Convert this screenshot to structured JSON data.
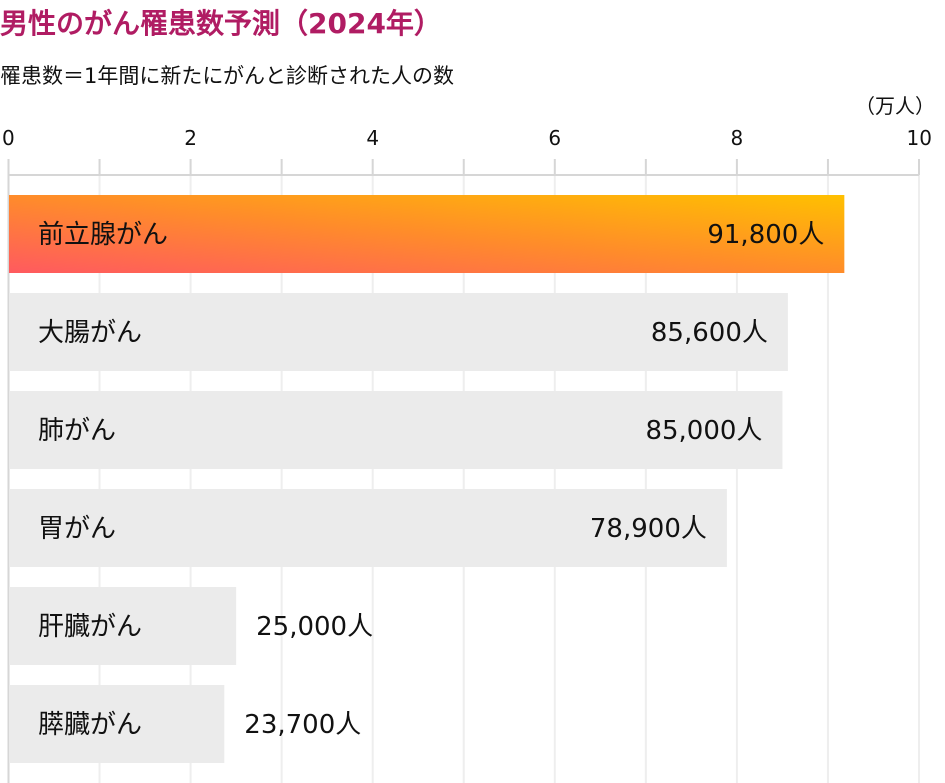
{
  "chart_data": {
    "type": "bar",
    "orientation": "horizontal",
    "title": "男性のがん罹患数予測（2024年）",
    "subtitle": "罹患数＝1年間に新たにがんと診断された人の数",
    "unit_label": "（万人）",
    "xlim": [
      0,
      10
    ],
    "x_tick_labels": [
      "0",
      "2",
      "4",
      "6",
      "8",
      "10"
    ],
    "x_ticks": [
      0,
      2,
      4,
      6,
      8,
      10
    ],
    "minor_ticks": [
      1,
      3,
      5,
      7,
      9
    ],
    "grid": true,
    "categories": [
      "前立腺がん",
      "大腸がん",
      "肺がん",
      "胃がん",
      "肝臓がん",
      "膵臓がん"
    ],
    "values": [
      9.18,
      8.56,
      8.5,
      7.89,
      2.5,
      2.37
    ],
    "data_labels": [
      "91,800人",
      "85,600人",
      "85,000人",
      "78,900人",
      "25,000人",
      "23,700人"
    ],
    "highlight_index": 0,
    "colors": {
      "title": "#b01c63",
      "bar_default": "#ebebeb",
      "highlight_gradient": [
        "#ff5a5f",
        "#ff8c2a",
        "#ffc000"
      ],
      "grid": "#eeeeee",
      "axis": "#d6d6d6"
    }
  }
}
